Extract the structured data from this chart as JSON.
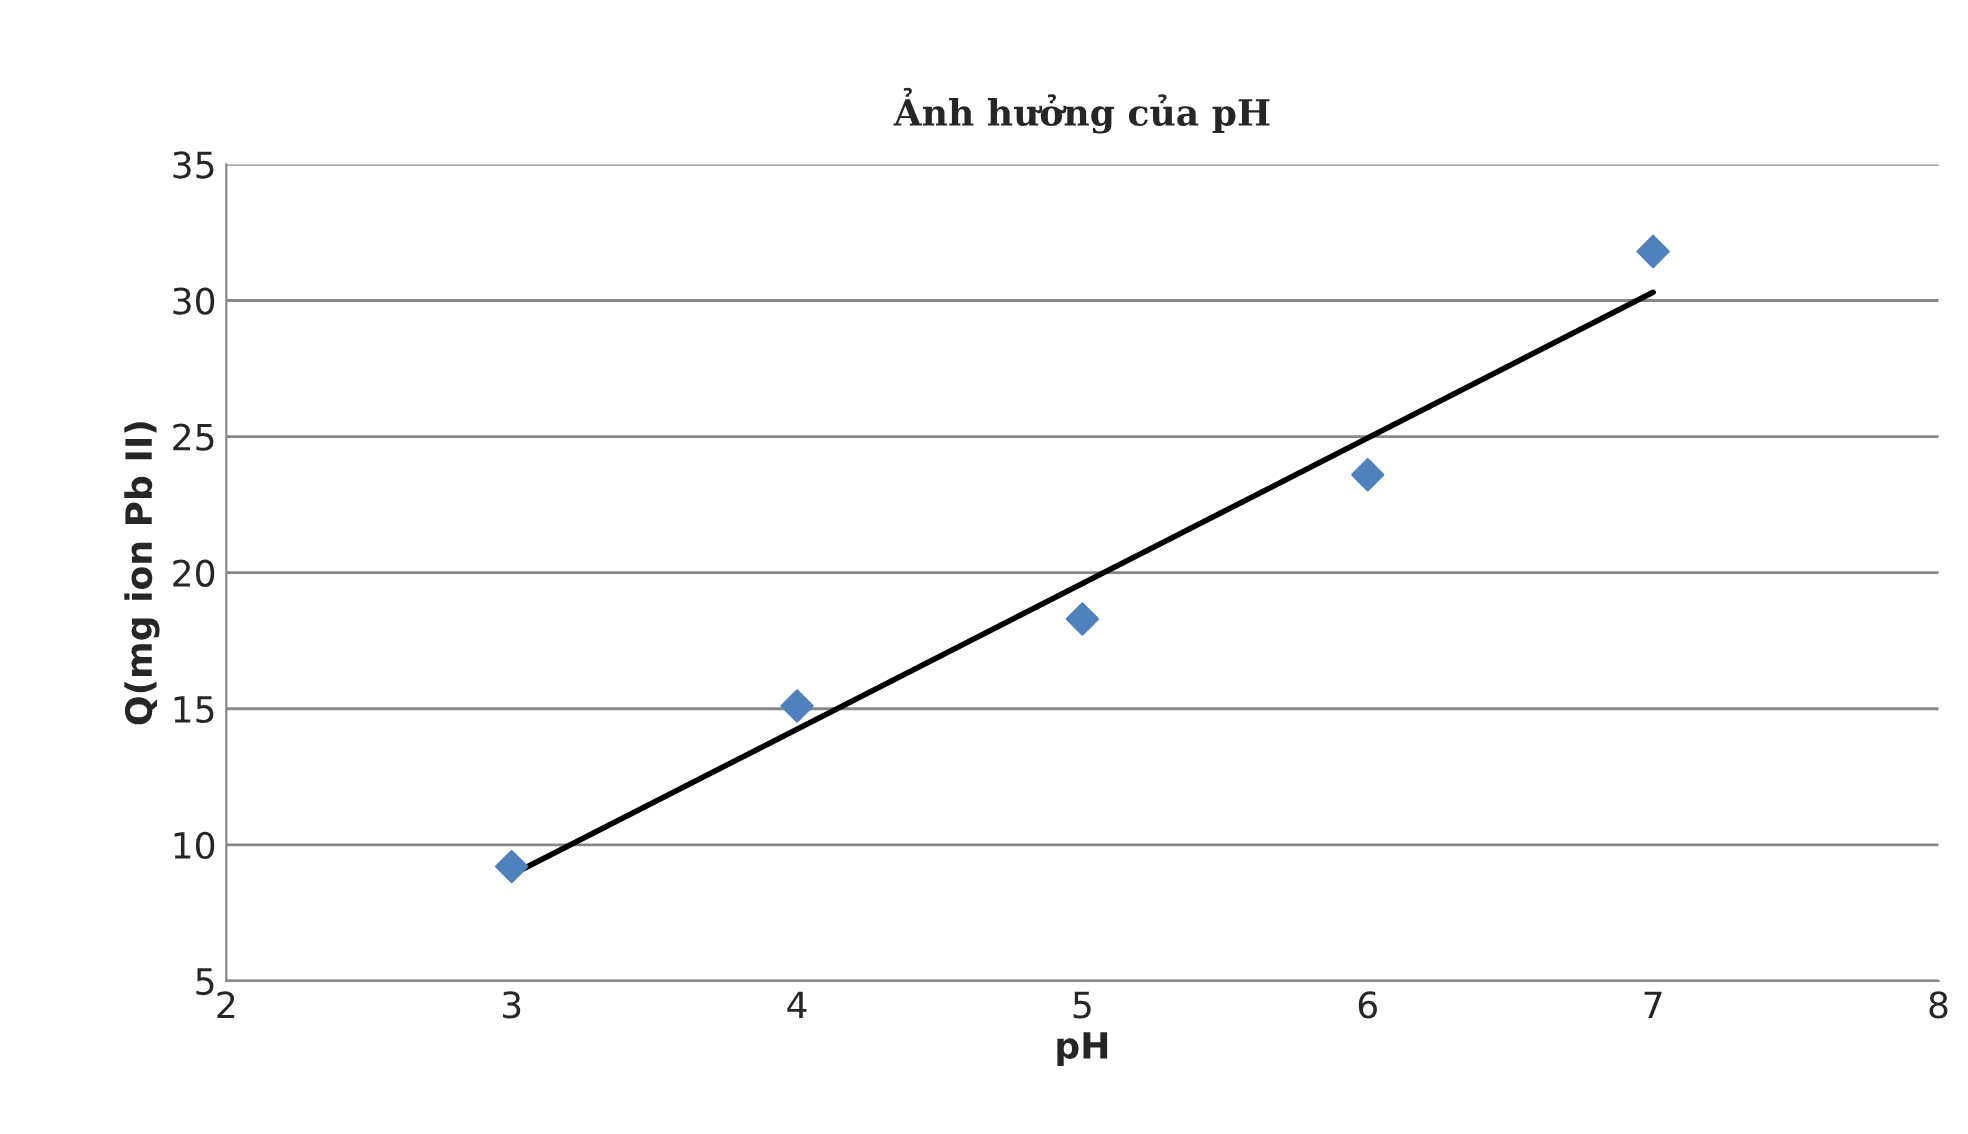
{
  "chart_data": {
    "type": "scatter",
    "title": "Ảnh hưởng của pH",
    "xlabel": "pH",
    "ylabel": "Q(mg ion Pb II)",
    "series": [
      {
        "color": "#4f81bd",
        "marker": "diamond",
        "x": [
          3,
          4,
          5,
          6,
          7
        ],
        "values": [
          9.2,
          15.1,
          18.3,
          23.6,
          31.8
        ]
      },
      {
        "type": "line",
        "color": "#000000",
        "marker": "none",
        "x": [
          3,
          7
        ],
        "values": [
          8.9,
          30.3
        ]
      }
    ],
    "xlim": [
      2,
      8
    ],
    "xticks": [
      2,
      3,
      4,
      5,
      6,
      7,
      8
    ],
    "ylim": [
      5,
      35
    ],
    "yticks": [
      5,
      10,
      15,
      20,
      25,
      30,
      35
    ],
    "grid": "y"
  }
}
